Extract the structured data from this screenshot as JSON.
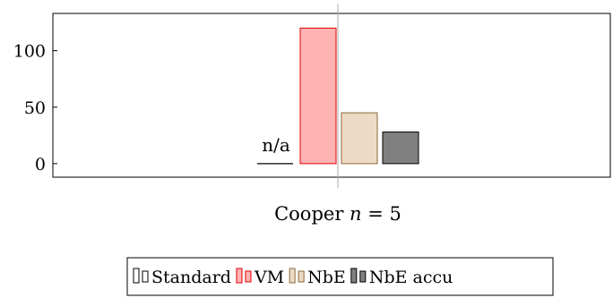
{
  "chart_data": {
    "type": "bar",
    "categories": [
      "Cooper n = 5"
    ],
    "category_label": {
      "text": "Cooper",
      "var": "n",
      "eq": " = 5"
    },
    "ylim": [
      -12,
      133
    ],
    "yticks": [
      0,
      50,
      100
    ],
    "grid": false,
    "legend_position": "bottom-center",
    "series": [
      {
        "name": "Standard",
        "values": [
          null
        ],
        "annotation": "n/a",
        "fill": "#ffffff",
        "stroke": "#000000"
      },
      {
        "name": "VM",
        "values": [
          120
        ],
        "fill": "#ffb3b3",
        "stroke": "#e00000"
      },
      {
        "name": "NbE",
        "values": [
          45
        ],
        "fill": "#ecdac4",
        "stroke": "#8c6a3c"
      },
      {
        "name": "NbE accu",
        "values": [
          28
        ],
        "fill": "#808080",
        "stroke": "#000000"
      }
    ]
  }
}
